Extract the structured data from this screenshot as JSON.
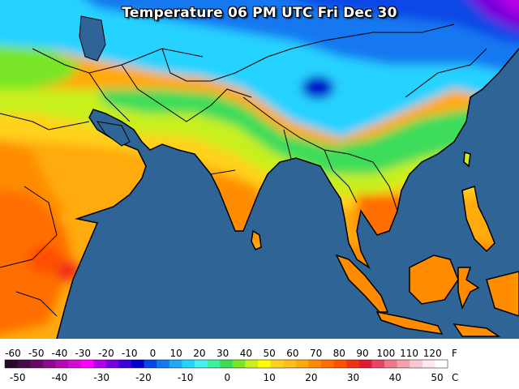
{
  "title": "Temperature 06 PM UTC Fri Dec 30",
  "legend": {
    "fahrenheit_unit": "F",
    "celsius_unit": "C",
    "fahrenheit_ticks": [
      "-60",
      "-50",
      "-40",
      "-30",
      "-20",
      "-10",
      "0",
      "10",
      "20",
      "30",
      "40",
      "50",
      "60",
      "70",
      "80",
      "90",
      "100",
      "110",
      "120"
    ],
    "celsius_ticks": [
      "-50",
      "-40",
      "-30",
      "-20",
      "-10",
      "0",
      "10",
      "20",
      "30",
      "40",
      "50"
    ],
    "colors": [
      "#280a28",
      "#460a46",
      "#640a64",
      "#8c0a8c",
      "#b40ab4",
      "#d20ad2",
      "#ff00ff",
      "#b400e6",
      "#7800dc",
      "#3c00dc",
      "#0000c8",
      "#0a46e6",
      "#1478f0",
      "#1eaaf5",
      "#28d2ff",
      "#46f0f0",
      "#3cf0a0",
      "#3cdc5a",
      "#78e628",
      "#c8f01e",
      "#ffff00",
      "#ffd21e",
      "#ffbe1e",
      "#ffaa0a",
      "#ff8c00",
      "#ff6e00",
      "#ff5000",
      "#f03214",
      "#dc1e32",
      "#e64664",
      "#f0788c",
      "#f5a0aa",
      "#fac8d2",
      "#ffe6f0",
      "#ffffff"
    ]
  },
  "map_colors": {
    "ocean": "#2e6496",
    "coast_line": "#000000"
  }
}
